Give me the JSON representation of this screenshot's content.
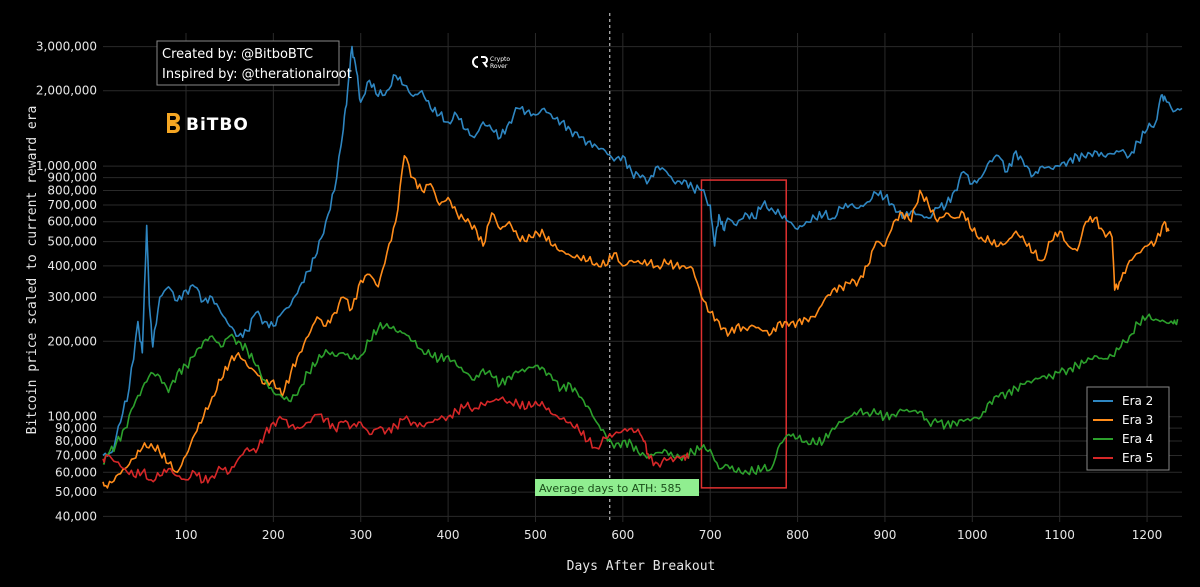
{
  "chart_data": {
    "type": "line",
    "xlabel": "Days After Breakout",
    "ylabel": "Bitcoin price scaled to current reward era",
    "y_scale": "log",
    "xlim": [
      5,
      1240
    ],
    "ylim": [
      38000,
      3400000
    ],
    "grid": true,
    "legend_position": "bottom-right",
    "x_ticks": [
      100,
      200,
      300,
      400,
      500,
      600,
      700,
      800,
      900,
      1000,
      1100,
      1200
    ],
    "y_ticks": [
      {
        "value": 40000,
        "label": "40,000"
      },
      {
        "value": 50000,
        "label": "50,000"
      },
      {
        "value": 60000,
        "label": "60,000"
      },
      {
        "value": 70000,
        "label": "70,000"
      },
      {
        "value": 80000,
        "label": "80,000"
      },
      {
        "value": 90000,
        "label": "90,000"
      },
      {
        "value": 100000,
        "label": "100,000"
      },
      {
        "value": 200000,
        "label": "200,000"
      },
      {
        "value": 300000,
        "label": "300,000"
      },
      {
        "value": 400000,
        "label": "400,000"
      },
      {
        "value": 500000,
        "label": "500,000"
      },
      {
        "value": 600000,
        "label": "600,000"
      },
      {
        "value": 700000,
        "label": "700,000"
      },
      {
        "value": 800000,
        "label": "800,000"
      },
      {
        "value": 900000,
        "label": "900,000"
      },
      {
        "value": 1000000,
        "label": "1,000,000"
      },
      {
        "value": 2000000,
        "label": "2,000,000"
      },
      {
        "value": 3000000,
        "label": "3,000,000"
      }
    ],
    "series": [
      {
        "name": "Era 2",
        "color": "#2e86c1",
        "x": [
          5,
          15,
          25,
          35,
          45,
          50,
          55,
          58,
          62,
          70,
          80,
          90,
          100,
          110,
          120,
          130,
          140,
          150,
          160,
          170,
          180,
          190,
          200,
          210,
          220,
          230,
          240,
          250,
          260,
          270,
          280,
          285,
          290,
          295,
          300,
          310,
          320,
          330,
          340,
          350,
          360,
          370,
          380,
          390,
          400,
          410,
          420,
          430,
          440,
          450,
          460,
          470,
          480,
          490,
          500,
          510,
          520,
          530,
          540,
          550,
          560,
          570,
          580,
          590,
          600,
          610,
          620,
          630,
          640,
          650,
          660,
          670,
          680,
          690,
          700,
          705,
          710,
          715,
          720,
          730,
          740,
          750,
          760,
          770,
          780,
          790,
          800,
          810,
          820,
          830,
          840,
          850,
          860,
          870,
          880,
          890,
          900,
          910,
          920,
          930,
          940,
          950,
          960,
          970,
          980,
          990,
          1000,
          1010,
          1020,
          1030,
          1040,
          1050,
          1060,
          1070,
          1080,
          1090,
          1100,
          1110,
          1120,
          1130,
          1140,
          1150,
          1160,
          1170,
          1180,
          1190,
          1200,
          1210,
          1215,
          1220,
          1230,
          1240
        ],
        "values": [
          70000,
          72000,
          95000,
          130000,
          240000,
          180000,
          580000,
          280000,
          190000,
          300000,
          330000,
          290000,
          320000,
          330000,
          290000,
          300000,
          260000,
          230000,
          210000,
          220000,
          260000,
          240000,
          230000,
          260000,
          280000,
          330000,
          380000,
          450000,
          600000,
          800000,
          1400000,
          2000000,
          3000000,
          2400000,
          1800000,
          2200000,
          1900000,
          2000000,
          2300000,
          2100000,
          1900000,
          2000000,
          1700000,
          1600000,
          1500000,
          1600000,
          1400000,
          1300000,
          1500000,
          1400000,
          1300000,
          1500000,
          1700000,
          1650000,
          1600000,
          1700000,
          1550000,
          1500000,
          1400000,
          1300000,
          1250000,
          1200000,
          1150000,
          1050000,
          1100000,
          950000,
          900000,
          880000,
          1000000,
          950000,
          850000,
          880000,
          820000,
          800000,
          700000,
          480000,
          640000,
          560000,
          620000,
          580000,
          650000,
          620000,
          700000,
          680000,
          640000,
          600000,
          560000,
          600000,
          620000,
          640000,
          620000,
          680000,
          700000,
          680000,
          720000,
          780000,
          750000,
          700000,
          620000,
          660000,
          640000,
          620000,
          680000,
          700000,
          800000,
          950000,
          850000,
          900000,
          1050000,
          1100000,
          950000,
          1150000,
          1000000,
          920000,
          1000000,
          980000,
          1000000,
          1050000,
          1100000,
          1080000,
          1150000,
          1100000,
          1120000,
          1150000,
          1100000,
          1250000,
          1400000,
          1500000,
          1850000,
          1900000,
          1650000,
          1700000
        ]
      },
      {
        "name": "Era 3",
        "color": "#ff8c1a",
        "x": [
          5,
          10,
          20,
          30,
          40,
          50,
          60,
          70,
          80,
          90,
          100,
          110,
          120,
          130,
          140,
          150,
          160,
          170,
          180,
          190,
          200,
          210,
          220,
          230,
          240,
          250,
          260,
          270,
          280,
          290,
          300,
          310,
          320,
          330,
          340,
          350,
          360,
          370,
          380,
          390,
          400,
          410,
          420,
          430,
          440,
          450,
          460,
          470,
          480,
          490,
          500,
          510,
          520,
          530,
          540,
          550,
          560,
          570,
          580,
          590,
          600,
          610,
          620,
          630,
          640,
          650,
          660,
          670,
          680,
          690,
          700,
          710,
          720,
          730,
          740,
          750,
          760,
          770,
          780,
          790,
          800,
          810,
          820,
          830,
          840,
          850,
          860,
          870,
          880,
          890,
          900,
          910,
          920,
          930,
          940,
          950,
          960,
          970,
          980,
          990,
          1000,
          1010,
          1020,
          1030,
          1040,
          1050,
          1060,
          1070,
          1080,
          1090,
          1100,
          1110,
          1120,
          1130,
          1140,
          1150,
          1160,
          1163,
          1170,
          1180,
          1190,
          1200,
          1210,
          1220,
          1225
        ],
        "values": [
          55000,
          52000,
          58000,
          62000,
          68000,
          75000,
          78000,
          72000,
          65000,
          60000,
          70000,
          85000,
          100000,
          120000,
          140000,
          165000,
          180000,
          160000,
          150000,
          135000,
          140000,
          120000,
          150000,
          180000,
          210000,
          250000,
          230000,
          260000,
          300000,
          270000,
          350000,
          370000,
          330000,
          450000,
          600000,
          1100000,
          900000,
          800000,
          850000,
          700000,
          750000,
          650000,
          600000,
          580000,
          480000,
          650000,
          560000,
          600000,
          520000,
          500000,
          550000,
          530000,
          480000,
          460000,
          440000,
          430000,
          420000,
          410000,
          400000,
          450000,
          400000,
          420000,
          410000,
          410000,
          400000,
          410000,
          400000,
          400000,
          390000,
          300000,
          260000,
          240000,
          210000,
          230000,
          225000,
          230000,
          220000,
          215000,
          240000,
          230000,
          240000,
          245000,
          250000,
          290000,
          320000,
          330000,
          340000,
          350000,
          400000,
          500000,
          480000,
          600000,
          650000,
          600000,
          800000,
          700000,
          600000,
          650000,
          620000,
          650000,
          550000,
          520000,
          500000,
          480000,
          500000,
          550000,
          500000,
          450000,
          420000,
          500000,
          550000,
          480000,
          460000,
          600000,
          620000,
          550000,
          520000,
          320000,
          350000,
          420000,
          450000,
          480000,
          500000,
          600000,
          550000
        ]
      },
      {
        "name": "Era 4",
        "color": "#2ca02c",
        "x": [
          5,
          10,
          20,
          30,
          40,
          50,
          60,
          70,
          80,
          90,
          100,
          110,
          120,
          130,
          140,
          150,
          160,
          170,
          180,
          190,
          200,
          210,
          220,
          230,
          240,
          250,
          260,
          270,
          280,
          290,
          300,
          310,
          320,
          330,
          340,
          350,
          360,
          370,
          380,
          390,
          400,
          410,
          420,
          430,
          440,
          450,
          460,
          470,
          480,
          490,
          500,
          510,
          520,
          530,
          540,
          550,
          560,
          570,
          580,
          590,
          600,
          610,
          620,
          630,
          640,
          650,
          660,
          670,
          680,
          690,
          700,
          710,
          720,
          730,
          740,
          750,
          760,
          770,
          780,
          790,
          800,
          810,
          820,
          830,
          840,
          850,
          860,
          870,
          880,
          890,
          900,
          910,
          920,
          930,
          940,
          950,
          960,
          970,
          980,
          990,
          1000,
          1010,
          1020,
          1030,
          1040,
          1050,
          1060,
          1070,
          1080,
          1090,
          1100,
          1110,
          1120,
          1130,
          1140,
          1150,
          1160,
          1170,
          1180,
          1190,
          1200,
          1210,
          1220,
          1230,
          1235
        ],
        "values": [
          65000,
          70000,
          78000,
          90000,
          110000,
          130000,
          150000,
          145000,
          125000,
          150000,
          160000,
          175000,
          200000,
          210000,
          190000,
          210000,
          200000,
          185000,
          160000,
          140000,
          125000,
          120000,
          115000,
          130000,
          150000,
          165000,
          185000,
          175000,
          180000,
          170000,
          175000,
          200000,
          225000,
          235000,
          220000,
          215000,
          200000,
          185000,
          175000,
          170000,
          175000,
          160000,
          150000,
          140000,
          155000,
          145000,
          135000,
          145000,
          150000,
          155000,
          160000,
          155000,
          140000,
          130000,
          135000,
          120000,
          110000,
          95000,
          85000,
          75000,
          80000,
          78000,
          70000,
          70000,
          72000,
          73000,
          68000,
          70000,
          72000,
          75000,
          74000,
          62000,
          64000,
          60000,
          61000,
          60000,
          62000,
          62000,
          78000,
          85000,
          82000,
          80000,
          78000,
          80000,
          90000,
          95000,
          100000,
          105000,
          104000,
          103000,
          100000,
          102000,
          106000,
          105000,
          105000,
          95000,
          95000,
          93000,
          95000,
          96000,
          98000,
          100000,
          115000,
          120000,
          125000,
          130000,
          135000,
          140000,
          145000,
          145000,
          150000,
          155000,
          160000,
          165000,
          175000,
          170000,
          175000,
          190000,
          210000,
          235000,
          250000,
          245000,
          240000,
          235000,
          245000
        ]
      },
      {
        "name": "Era 5",
        "color": "#d62728",
        "x": [
          5,
          10,
          20,
          30,
          40,
          50,
          60,
          70,
          80,
          90,
          100,
          110,
          120,
          130,
          140,
          150,
          160,
          170,
          180,
          190,
          200,
          210,
          220,
          230,
          240,
          250,
          260,
          270,
          280,
          290,
          300,
          310,
          320,
          330,
          340,
          350,
          360,
          370,
          380,
          390,
          400,
          410,
          420,
          430,
          440,
          450,
          460,
          470,
          480,
          490,
          500,
          510,
          520,
          530,
          540,
          550,
          560,
          570,
          580,
          590,
          600,
          610,
          620,
          625,
          630,
          640,
          650,
          660,
          670,
          675
        ],
        "values": [
          68000,
          70000,
          66000,
          62000,
          58000,
          60000,
          56000,
          58000,
          62000,
          58000,
          56000,
          60000,
          55000,
          58000,
          62000,
          60000,
          68000,
          75000,
          72000,
          85000,
          95000,
          98000,
          92000,
          90000,
          95000,
          102000,
          98000,
          90000,
          95000,
          92000,
          95000,
          85000,
          90000,
          88000,
          92000,
          98000,
          95000,
          92000,
          95000,
          98000,
          100000,
          105000,
          110000,
          108000,
          112000,
          115000,
          118000,
          115000,
          112000,
          108000,
          115000,
          110000,
          102000,
          98000,
          95000,
          88000,
          80000,
          75000,
          82000,
          85000,
          88000,
          90000,
          85000,
          80000,
          68000,
          65000,
          67000,
          68000,
          70000,
          68000
        ]
      }
    ],
    "annotations": [
      {
        "type": "vline",
        "x": 585,
        "label": "Average days to ATH: 585",
        "label_color": "#90ee90"
      },
      {
        "type": "rect",
        "x0": 690,
        "x1": 787,
        "y0": 52000,
        "y1": 880000,
        "color": "#e03030"
      }
    ]
  },
  "credits": {
    "line1": "Created by: @BitboBTC",
    "line2": "Inspired by: @therationalroot"
  },
  "logos": {
    "bitbo": "BiTBO",
    "bitbo_color": "#f5a623",
    "crypto_rover_line1": "Crypto",
    "crypto_rover_line2": "Rover"
  }
}
